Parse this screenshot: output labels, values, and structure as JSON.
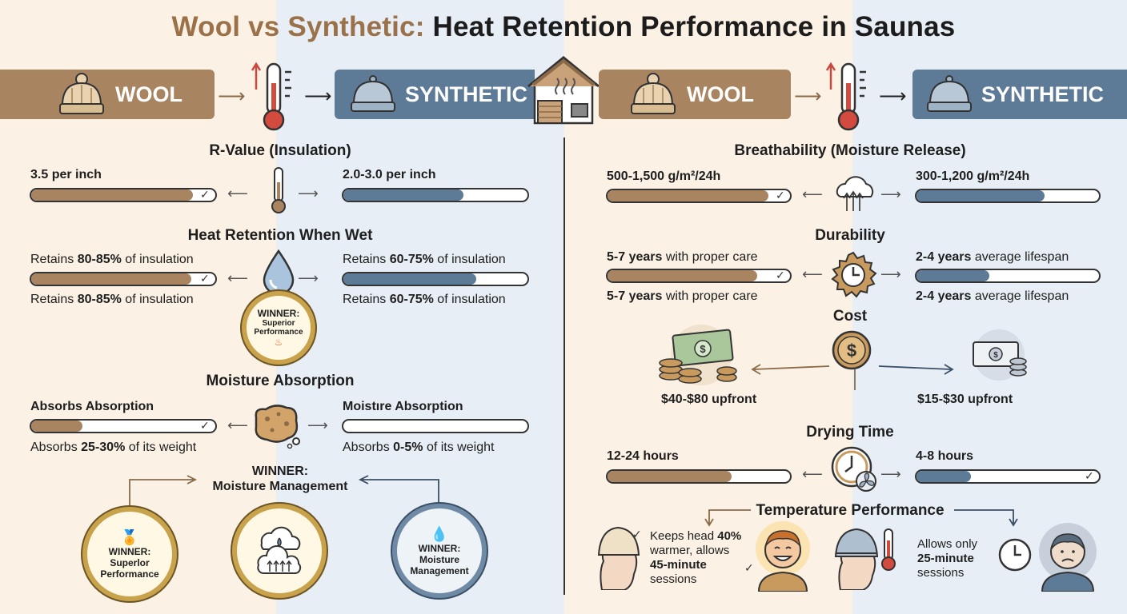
{
  "title": {
    "part1": "Wool vs Synthetic:",
    "part2": "Heat Retention Performance in Saunas"
  },
  "banners": {
    "wool": "WOOL",
    "synthetic": "SYNTHETIC"
  },
  "left": {
    "rvalue": {
      "title": "R-Value (Insulation)",
      "wool": "3.5 per inch",
      "synthetic": "2.0-3.0 per inch",
      "wool_fill": 0.88,
      "syn_fill": 0.65
    },
    "wet": {
      "title": "Heat Retention When Wet",
      "wool_pre": "Retains ",
      "wool_pct": "80-85%",
      "wool_post": " of insulation",
      "syn_pre": "Retains ",
      "syn_pct": "60-75%",
      "syn_post": " of insulation",
      "wool_fill": 0.87,
      "syn_fill": 0.72,
      "medal_1": "WINNER:",
      "medal_2": "Superior",
      "medal_3": "Performance"
    },
    "moisture": {
      "title": "Moisture Absorption",
      "wool_label": "Absorbs Absorption",
      "syn_label": "Moistıre Absorption",
      "wool_pre": "Absorbs ",
      "wool_pct": "25-30%",
      "wool_post": " of its weight",
      "syn_pre": "Absorbs ",
      "syn_pct": "0-5%",
      "syn_post": " of its weight",
      "wool_fill": 0.28,
      "syn_fill": 0.0
    },
    "winner_banner": {
      "line1": "WINNER:",
      "line2": "Moisture Management"
    },
    "medals": {
      "left": {
        "l1": "WINNER:",
        "l2": "Superlor",
        "l3": "Performance"
      },
      "right": {
        "l1": "WINNER:",
        "l2": "Moisture",
        "l3": "Management"
      }
    }
  },
  "right": {
    "breath": {
      "title": "Breathability (Moisture Release)",
      "wool": "500-1,500 g/m²/24h",
      "synthetic": "300-1,200 g/m²/24h",
      "wool_fill": 0.88,
      "syn_fill": 0.7
    },
    "durability": {
      "title": "Durability",
      "wool_b": "5-7 years",
      "wool_rest": " with proper care",
      "syn_b": "2-4 years",
      "syn_rest": " average lifespan",
      "wool_fill": 0.82,
      "syn_fill": 0.4
    },
    "cost": {
      "title": "Cost",
      "wool": "$40-$80 upfront",
      "synthetic": "$15-$30 upfront"
    },
    "drying": {
      "title": "Drying Time",
      "wool": "12-24 hours",
      "synthetic": "4-8 hours",
      "wool_fill": 0.68,
      "syn_fill": 0.3
    },
    "temp": {
      "title": "Temperature Performance",
      "wool_1": "Keeps head ",
      "wool_pct": "40%",
      "wool_2": "warmer, allows",
      "wool_3": "45-minute",
      "wool_4": "sessions",
      "syn_1": "Allows only",
      "syn_2": "25-minute",
      "syn_3": "sessions"
    }
  },
  "colors": {
    "wool": "#a98461",
    "synthetic": "#5d7a97",
    "gold": "#c9a24c"
  }
}
